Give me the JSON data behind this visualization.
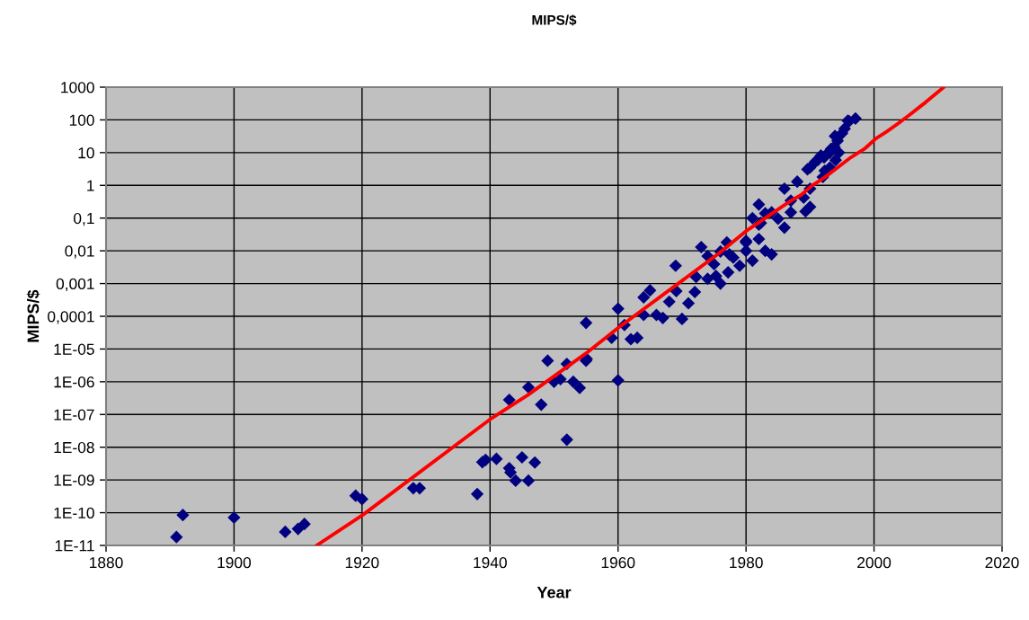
{
  "chart_data": {
    "type": "scatter",
    "title": "MIPS/$",
    "xlabel": "Year",
    "ylabel": "MIPS/$",
    "log": "y",
    "grid": true,
    "xlim": [
      1880,
      2020
    ],
    "xticks": [
      1880,
      1900,
      1920,
      1940,
      1960,
      1980,
      2000,
      2020
    ],
    "ylim": [
      1e-11,
      1000
    ],
    "yticks": [
      1000,
      100,
      10,
      1,
      {
        "value": 0.1,
        "label": "0,1"
      },
      {
        "value": 0.01,
        "label": "0,01"
      },
      {
        "value": 0.001,
        "label": "0,001"
      },
      {
        "value": 0.0001,
        "label": "0,0001"
      },
      {
        "value": 1e-05,
        "label": "1E-05"
      },
      {
        "value": 1e-06,
        "label": "1E-06"
      },
      {
        "value": 1e-07,
        "label": "1E-07"
      },
      {
        "value": 1e-08,
        "label": "1E-08"
      },
      {
        "value": 1e-09,
        "label": "1E-09"
      },
      {
        "value": 1e-10,
        "label": "1E-10"
      },
      {
        "value": 1e-11,
        "label": "1E-11"
      }
    ],
    "series": [
      {
        "marker": "diamond",
        "color": "#000080",
        "x": [
          1891,
          1892,
          1900,
          1908,
          1910,
          1911,
          1919,
          1920,
          1928,
          1929,
          1938,
          1938.8,
          1939.3,
          1941,
          1943,
          1943.2,
          1944,
          1945,
          1946,
          1947,
          1952,
          1943,
          1946,
          1948,
          1949,
          1950,
          1951,
          1952,
          1953,
          1954,
          1955,
          1955.1,
          1955,
          1959,
          1960,
          1960,
          1961,
          1962,
          1963,
          1964,
          1964,
          1965,
          1966,
          1967,
          1968,
          1969,
          1969.1,
          1970,
          1971,
          1972,
          1972.2,
          1973,
          1974,
          1974,
          1975,
          1975.3,
          1976,
          1977,
          1977.2,
          1976,
          1977.4,
          1978,
          1979,
          1980,
          1980,
          1981,
          1981,
          1982,
          1982,
          1982,
          1983,
          1984,
          1983,
          1984,
          1985,
          1986,
          1982.3,
          1987,
          1987,
          1986,
          1988,
          1989,
          1990,
          1989.3,
          1990,
          1992,
          1990,
          1989.6,
          1990.8,
          1991.2,
          1991.7,
          1992.2,
          1992.6,
          1993.1,
          1993.8,
          1993.9,
          1994.3,
          1995,
          1995.4,
          1995.9,
          1997.1,
          1980,
          1992.3,
          1993.3,
          1993.1,
          1994,
          1994.5,
          1996.1
        ],
        "values": [
          1.8e-11,
          8.5e-11,
          7.1e-11,
          2.6e-11,
          3.2e-11,
          4.5e-11,
          3.3e-10,
          2.6e-10,
          5.6e-10,
          5.6e-10,
          3.7e-10,
          3.5e-09,
          4.1e-09,
          4.4e-09,
          2.3e-09,
          1.7e-09,
          9.5e-10,
          4.9e-09,
          9.5e-10,
          3.4e-09,
          1.7e-08,
          2.8e-07,
          6.8e-07,
          2e-07,
          4.4e-06,
          1e-06,
          1.2e-06,
          3.5e-06,
          1e-06,
          6.5e-07,
          4.4e-06,
          5e-06,
          6.3e-05,
          2.2e-05,
          0.00017,
          1.1e-06,
          5.4e-05,
          2e-05,
          2.2e-05,
          0.00011,
          0.00038,
          0.00062,
          0.00011,
          8.9e-05,
          0.00028,
          0.0035,
          0.00059,
          8.3e-05,
          0.00025,
          0.00055,
          0.0016,
          0.013,
          0.0014,
          0.0069,
          0.0039,
          0.0017,
          0.001,
          0.018,
          0.0022,
          0.0095,
          0.0078,
          0.0062,
          0.0035,
          0.02,
          0.01,
          0.005,
          0.1,
          0.023,
          0.063,
          0.26,
          0.01,
          0.0078,
          0.14,
          0.15,
          0.095,
          0.051,
          0.071,
          0.34,
          0.15,
          0.79,
          1.3,
          0.42,
          0.22,
          0.16,
          0.79,
          1.8,
          3.5,
          3.1,
          5.2,
          5.9,
          8.1,
          7.2,
          8.9,
          10,
          15,
          32,
          23,
          39,
          54,
          95,
          110,
          0.018,
          2.8,
          13,
          3.5,
          5.9,
          10,
          91
        ]
      },
      {
        "type": "line",
        "marker": "none",
        "line_style": "solid",
        "color": "#ff0000",
        "x": [
          1912.9,
          1920.1,
          1933.5,
          1940,
          1945.8,
          1955,
          1960,
          1970.2,
          1975.8,
          1980,
          1987,
          1988.6,
          1990.3,
          1992.2,
          1994.3,
          1996.4,
          1998.5,
          2000.2,
          2002,
          2003.9,
          2005.7,
          2008.1,
          2010.9
        ],
        "values": [
          1e-11,
          8.5e-11,
          7.9e-09,
          7.1e-08,
          3.8e-07,
          7.4e-06,
          4.4e-05,
          0.0013,
          0.0085,
          0.04,
          0.34,
          0.51,
          0.98,
          1.7,
          3.5,
          7.2,
          13,
          26,
          44,
          81,
          150,
          350,
          1000
        ]
      }
    ]
  }
}
